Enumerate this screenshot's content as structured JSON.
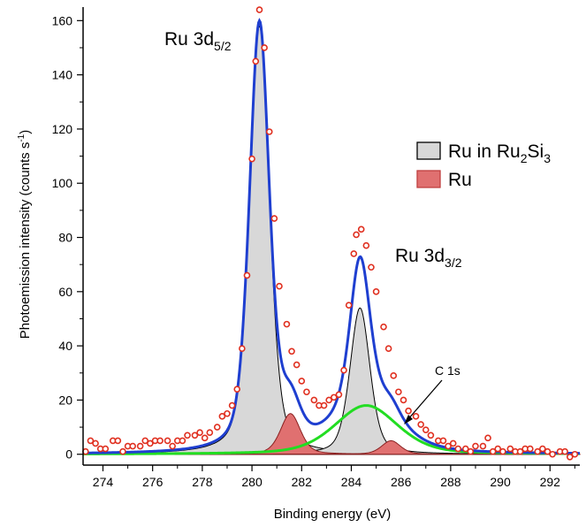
{
  "chart_data": {
    "type": "line",
    "xlabel": "Binding energy (eV)",
    "ylabel_main": "Photoemission intensity (counts s",
    "ylabel_sup": "-1",
    "ylabel_tail": ")",
    "xlim": [
      273.2,
      293.2
    ],
    "ylim": [
      -4,
      165
    ],
    "xticks": [
      274,
      276,
      278,
      280,
      282,
      284,
      286,
      288,
      290,
      292
    ],
    "yticks": [
      0,
      20,
      40,
      60,
      80,
      100,
      120,
      140,
      160
    ],
    "grid": false,
    "legend_position": "right",
    "legend": [
      {
        "label_main": "Ru in Ru",
        "label_sub1": "2",
        "label_mid": "Si",
        "label_sub2": "3",
        "color": "#d8d8d8",
        "stroke": "#000000"
      },
      {
        "label_main": "Ru",
        "color": "#e07070",
        "stroke": "#c04040"
      }
    ],
    "annotations": {
      "peak1": {
        "text": "Ru 3d",
        "sub": "5/2"
      },
      "peak2": {
        "text": "Ru 3d",
        "sub": "3/2"
      },
      "c1s": {
        "text": "C 1s"
      }
    },
    "components": {
      "ru2si3": [
        {
          "center": 280.3,
          "amplitude": 158,
          "fwhm": 0.95
        },
        {
          "center": 284.35,
          "amplitude": 54,
          "fwhm": 0.95
        }
      ],
      "ru": [
        {
          "center": 281.55,
          "amplitude": 15,
          "fwhm": 0.95
        },
        {
          "center": 285.6,
          "amplitude": 5,
          "fwhm": 0.9
        }
      ],
      "c1s": {
        "center": 284.6,
        "amplitude": 18,
        "fwhm": 3.0
      }
    },
    "series": [
      {
        "name": "fit",
        "color": "#1f3fd0"
      },
      {
        "name": "C 1s",
        "color": "#22dd22"
      }
    ],
    "data_points": [
      [
        273.3,
        1
      ],
      [
        273.5,
        5
      ],
      [
        273.7,
        4
      ],
      [
        273.9,
        2
      ],
      [
        274.1,
        2
      ],
      [
        274.4,
        5
      ],
      [
        274.6,
        5
      ],
      [
        274.8,
        1
      ],
      [
        275.0,
        3
      ],
      [
        275.2,
        3
      ],
      [
        275.5,
        3
      ],
      [
        275.7,
        5
      ],
      [
        275.9,
        4
      ],
      [
        276.1,
        5
      ],
      [
        276.3,
        5
      ],
      [
        276.6,
        5
      ],
      [
        276.8,
        3
      ],
      [
        277.0,
        5
      ],
      [
        277.2,
        5
      ],
      [
        277.4,
        7
      ],
      [
        277.7,
        7
      ],
      [
        277.9,
        8
      ],
      [
        278.1,
        6
      ],
      [
        278.3,
        8
      ],
      [
        278.6,
        10
      ],
      [
        278.8,
        14
      ],
      [
        279.0,
        15
      ],
      [
        279.2,
        18
      ],
      [
        279.4,
        24
      ],
      [
        279.6,
        39
      ],
      [
        279.8,
        66
      ],
      [
        280.0,
        109
      ],
      [
        280.15,
        145
      ],
      [
        280.3,
        164
      ],
      [
        280.5,
        150
      ],
      [
        280.7,
        119
      ],
      [
        280.9,
        87
      ],
      [
        281.1,
        62
      ],
      [
        281.4,
        48
      ],
      [
        281.6,
        38
      ],
      [
        281.8,
        33
      ],
      [
        282.0,
        27
      ],
      [
        282.2,
        23
      ],
      [
        282.5,
        20
      ],
      [
        282.7,
        18
      ],
      [
        282.9,
        18
      ],
      [
        283.1,
        20
      ],
      [
        283.3,
        21
      ],
      [
        283.5,
        22
      ],
      [
        283.7,
        31
      ],
      [
        283.9,
        55
      ],
      [
        284.1,
        74
      ],
      [
        284.2,
        81
      ],
      [
        284.4,
        83
      ],
      [
        284.6,
        77
      ],
      [
        284.8,
        69
      ],
      [
        285.0,
        60
      ],
      [
        285.3,
        47
      ],
      [
        285.5,
        39
      ],
      [
        285.7,
        29
      ],
      [
        285.9,
        23
      ],
      [
        286.1,
        20
      ],
      [
        286.3,
        16
      ],
      [
        286.6,
        14
      ],
      [
        286.8,
        11
      ],
      [
        287.0,
        9
      ],
      [
        287.2,
        7
      ],
      [
        287.5,
        5
      ],
      [
        287.7,
        5
      ],
      [
        287.9,
        3
      ],
      [
        288.1,
        4
      ],
      [
        288.3,
        2
      ],
      [
        288.6,
        2
      ],
      [
        288.8,
        1
      ],
      [
        289.0,
        3
      ],
      [
        289.3,
        3
      ],
      [
        289.5,
        6
      ],
      [
        289.7,
        1
      ],
      [
        289.9,
        2
      ],
      [
        290.1,
        1
      ],
      [
        290.4,
        2
      ],
      [
        290.6,
        1
      ],
      [
        290.8,
        1
      ],
      [
        291.0,
        2
      ],
      [
        291.2,
        2
      ],
      [
        291.5,
        1
      ],
      [
        291.7,
        2
      ],
      [
        291.9,
        1
      ],
      [
        292.1,
        0
      ],
      [
        292.4,
        1
      ],
      [
        292.6,
        1
      ],
      [
        292.8,
        -1
      ],
      [
        293.0,
        0
      ]
    ]
  }
}
